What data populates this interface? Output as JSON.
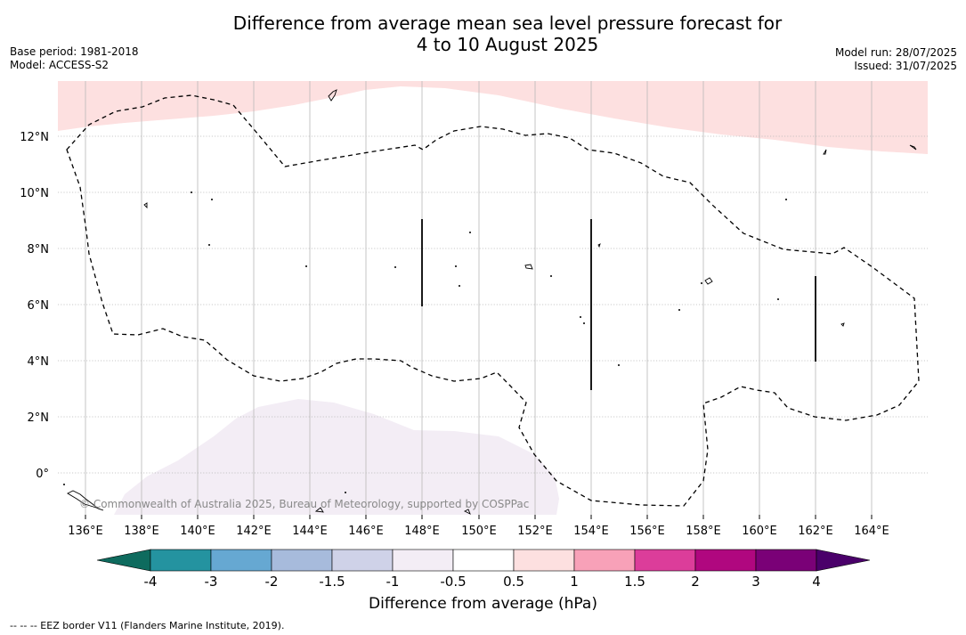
{
  "title": {
    "line1": "Difference from average mean sea level pressure forecast for",
    "line2": "4 to 10 August 2025"
  },
  "meta": {
    "base_period": "Base period: 1981-2018",
    "model": "Model: ACCESS-S2",
    "model_run": "Model run: 28/07/2025",
    "issued": "Issued: 31/07/2025"
  },
  "map": {
    "lon_ticks": [
      "136°E",
      "138°E",
      "140°E",
      "142°E",
      "144°E",
      "146°E",
      "148°E",
      "150°E",
      "152°E",
      "154°E",
      "156°E",
      "158°E",
      "160°E",
      "162°E",
      "164°E"
    ],
    "lat_ticks": [
      "12°N",
      "10°N",
      "8°N",
      "6°N",
      "4°N",
      "2°N",
      "0°"
    ],
    "credit": "© Commonwealth of Australia 2025, Bureau of Meteorology, supported by COSPPac"
  },
  "colorbar": {
    "ticks": [
      "-4",
      "-3",
      "-2",
      "-1.5",
      "-1",
      "-0.5",
      "0.5",
      "1",
      "1.5",
      "2",
      "3",
      "4"
    ],
    "colors": [
      "#0e6b5e",
      "#2493a0",
      "#66a8d2",
      "#a7bbdc",
      "#cfd2e8",
      "#f3edf5",
      "#ffffff",
      "#fde0e0",
      "#f8a1b8",
      "#dc3d9a",
      "#b0077f",
      "#7a0177",
      "#4a006a"
    ],
    "label": "Difference from average (hPa)"
  },
  "footnote": "--  --  -- EEZ border V11 (Flanders Marine Institute, 2019)."
}
